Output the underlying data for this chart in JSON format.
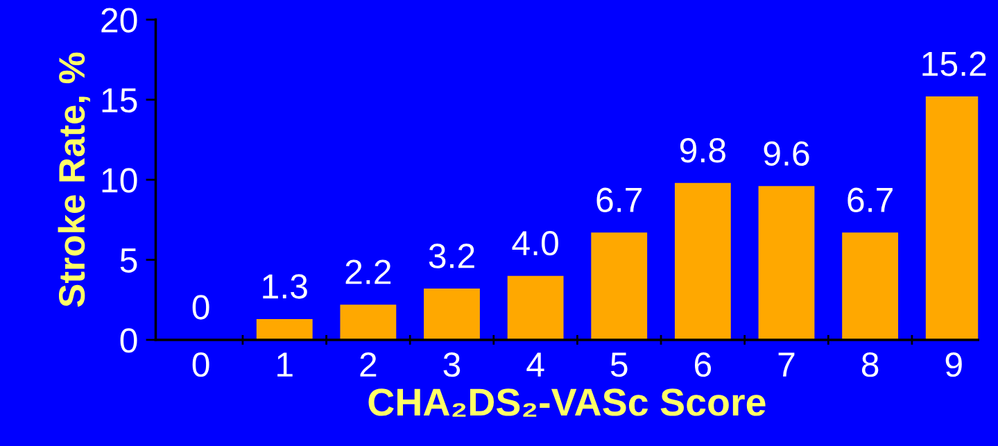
{
  "chart_data": {
    "type": "bar",
    "xlabel": "CHA₂DS₂-VASc Score",
    "ylabel": "Stroke Rate, %",
    "categories": [
      "0",
      "1",
      "2",
      "3",
      "4",
      "5",
      "6",
      "7",
      "8",
      "9"
    ],
    "values": [
      0,
      1.3,
      2.2,
      3.2,
      4.0,
      6.7,
      9.8,
      9.6,
      6.7,
      15.2
    ],
    "value_labels": [
      "0",
      "1.3",
      "2.2",
      "3.2",
      "4.0",
      "6.7",
      "9.8",
      "9.6",
      "6.7",
      "15.2"
    ],
    "color": "#ffa800",
    "ylim": [
      0,
      20
    ],
    "yticks": [
      0,
      5,
      10,
      15,
      20
    ],
    "grid": false,
    "legend": false
  }
}
